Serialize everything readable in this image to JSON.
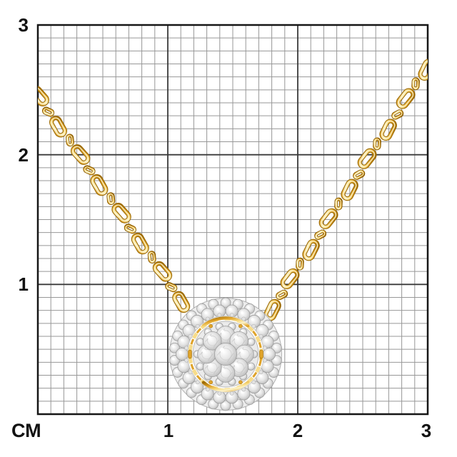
{
  "grid": {
    "unit_label": "СМ",
    "y_tick_labels": [
      "3",
      "2",
      "1"
    ],
    "x_tick_labels": [
      "1",
      "2",
      "3"
    ],
    "cm_span": 3,
    "minor_divisions_per_cm": 10
  },
  "palette": {
    "background": "#ffffff",
    "grid_minor": "#979797",
    "grid_major": "#3a3a3a",
    "grid_border": "#161616",
    "label_color": "#121212",
    "gold_dark": "#9c6a05",
    "gold_mid": "#dfa32a",
    "gold_light": "#f6d87d",
    "gold_highlight": "#fdf3c8",
    "diamond_mid": "#e4e4e4",
    "diamond_dark": "#bcbcbc",
    "diamond_stroke": "#9d9d9d"
  }
}
